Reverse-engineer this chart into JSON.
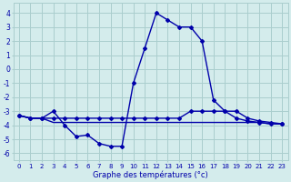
{
  "x_hours": [
    0,
    1,
    2,
    3,
    4,
    5,
    6,
    7,
    8,
    9,
    10,
    11,
    12,
    13,
    14,
    15,
    16,
    17,
    18,
    19,
    20,
    21,
    22,
    23
  ],
  "line1_temps": [
    -3.3,
    -3.5,
    -3.5,
    -3.0,
    -4.0,
    -4.8,
    -4.7,
    -5.3,
    -5.5,
    -5.5,
    -1.0,
    1.5,
    4.0,
    3.5,
    3.0,
    3.0,
    2.0,
    -2.2,
    -3.0,
    -3.0,
    -3.5,
    -3.7,
    -3.8,
    -3.9
  ],
  "line2_temps": [
    -3.3,
    -3.5,
    -3.5,
    -3.5,
    -3.5,
    -3.5,
    -3.5,
    -3.5,
    -3.5,
    -3.5,
    -3.5,
    -3.5,
    -3.5,
    -3.5,
    -3.5,
    -3.0,
    -3.0,
    -3.0,
    -3.0,
    -3.5,
    -3.7,
    -3.8,
    -3.9,
    -3.9
  ],
  "line3_temps": [
    -3.3,
    -3.5,
    -3.5,
    -3.8,
    -3.8,
    -3.8,
    -3.8,
    -3.8,
    -3.8,
    -3.8,
    -3.8,
    -3.8,
    -3.8,
    -3.8,
    -3.8,
    -3.8,
    -3.8,
    -3.8,
    -3.8,
    -3.8,
    -3.8,
    -3.8,
    -3.9,
    -3.9
  ],
  "line_color": "#0000aa",
  "bg_color": "#d4ecec",
  "grid_color": "#aacece",
  "ylim": [
    -6.5,
    4.7
  ],
  "yticks": [
    -6,
    -5,
    -4,
    -3,
    -2,
    -1,
    0,
    1,
    2,
    3,
    4
  ],
  "xlabel": "Graphe des températures (°c)",
  "tick_labels": [
    "0",
    "1",
    "2",
    "3",
    "4",
    "5",
    "6",
    "7",
    "8",
    "9",
    "10",
    "11",
    "12",
    "13",
    "14",
    "15",
    "16",
    "17",
    "18",
    "19",
    "20",
    "21",
    "22",
    "23"
  ],
  "markersize": 2.0,
  "linewidth": 1.0,
  "fig_width": 3.2,
  "fig_height": 2.0,
  "dpi": 100
}
